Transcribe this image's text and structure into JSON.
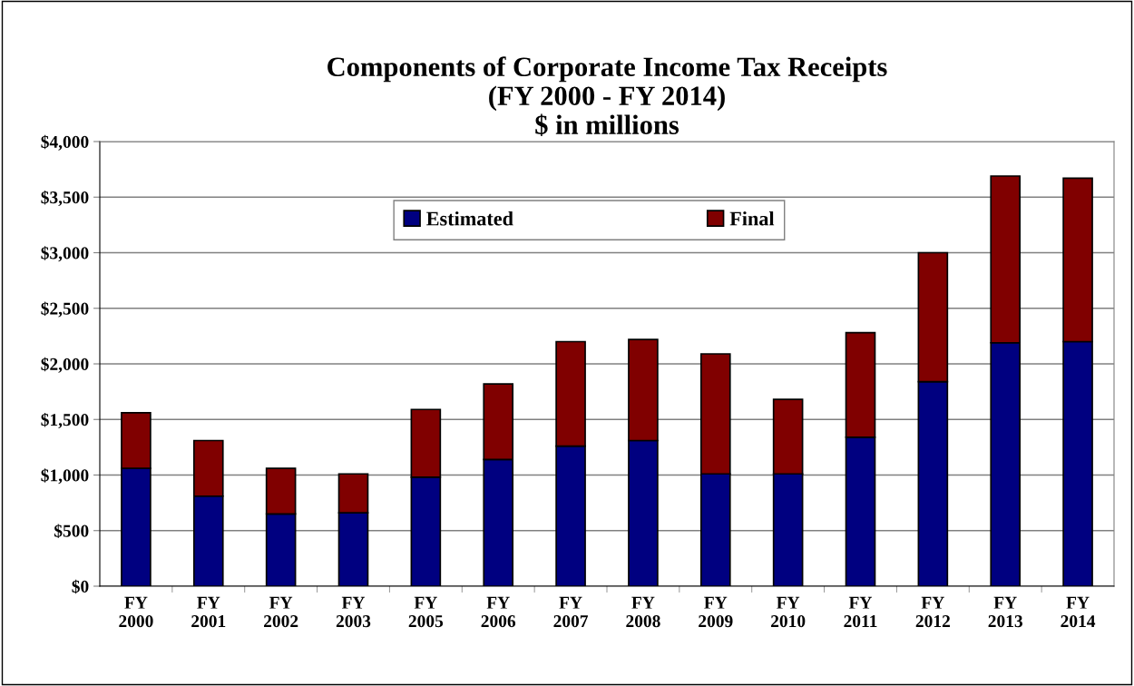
{
  "chart_data": {
    "type": "bar",
    "title": "Components of Corporate Income Tax Receipts\n(FY 2000 - FY 2014)\n$ in millions",
    "categories": [
      "FY\n2000",
      "FY\n2001",
      "FY\n2002",
      "FY\n2003",
      "FY\n2005",
      "FY\n2006",
      "FY\n2007",
      "FY\n2008",
      "FY\n2009",
      "FY\n2010",
      "FY\n2011",
      "FY\n2012",
      "FY\n2013",
      "FY\n2014"
    ],
    "series": [
      {
        "name": "Estimated",
        "color": "#000080",
        "values": [
          1060,
          810,
          650,
          660,
          980,
          1140,
          1260,
          1310,
          1010,
          1010,
          1340,
          1840,
          2190,
          2200
        ]
      },
      {
        "name": "Final",
        "color": "#800000",
        "values": [
          500,
          500,
          410,
          350,
          610,
          680,
          940,
          910,
          1080,
          670,
          940,
          1160,
          1500,
          1470
        ]
      }
    ],
    "stacked": true,
    "ylim": [
      0,
      4000
    ],
    "yticks": [
      {
        "value": 0,
        "label": "$0"
      },
      {
        "value": 500,
        "label": "$500"
      },
      {
        "value": 1000,
        "label": "$1,000"
      },
      {
        "value": 1500,
        "label": "$1,500"
      },
      {
        "value": 2000,
        "label": "$2,000"
      },
      {
        "value": 2500,
        "label": "$2,500"
      },
      {
        "value": 3000,
        "label": "$3,000"
      },
      {
        "value": 3500,
        "label": "$3,500"
      },
      {
        "value": 4000,
        "label": "$4,000"
      }
    ],
    "grid": "y",
    "legend": "top"
  }
}
